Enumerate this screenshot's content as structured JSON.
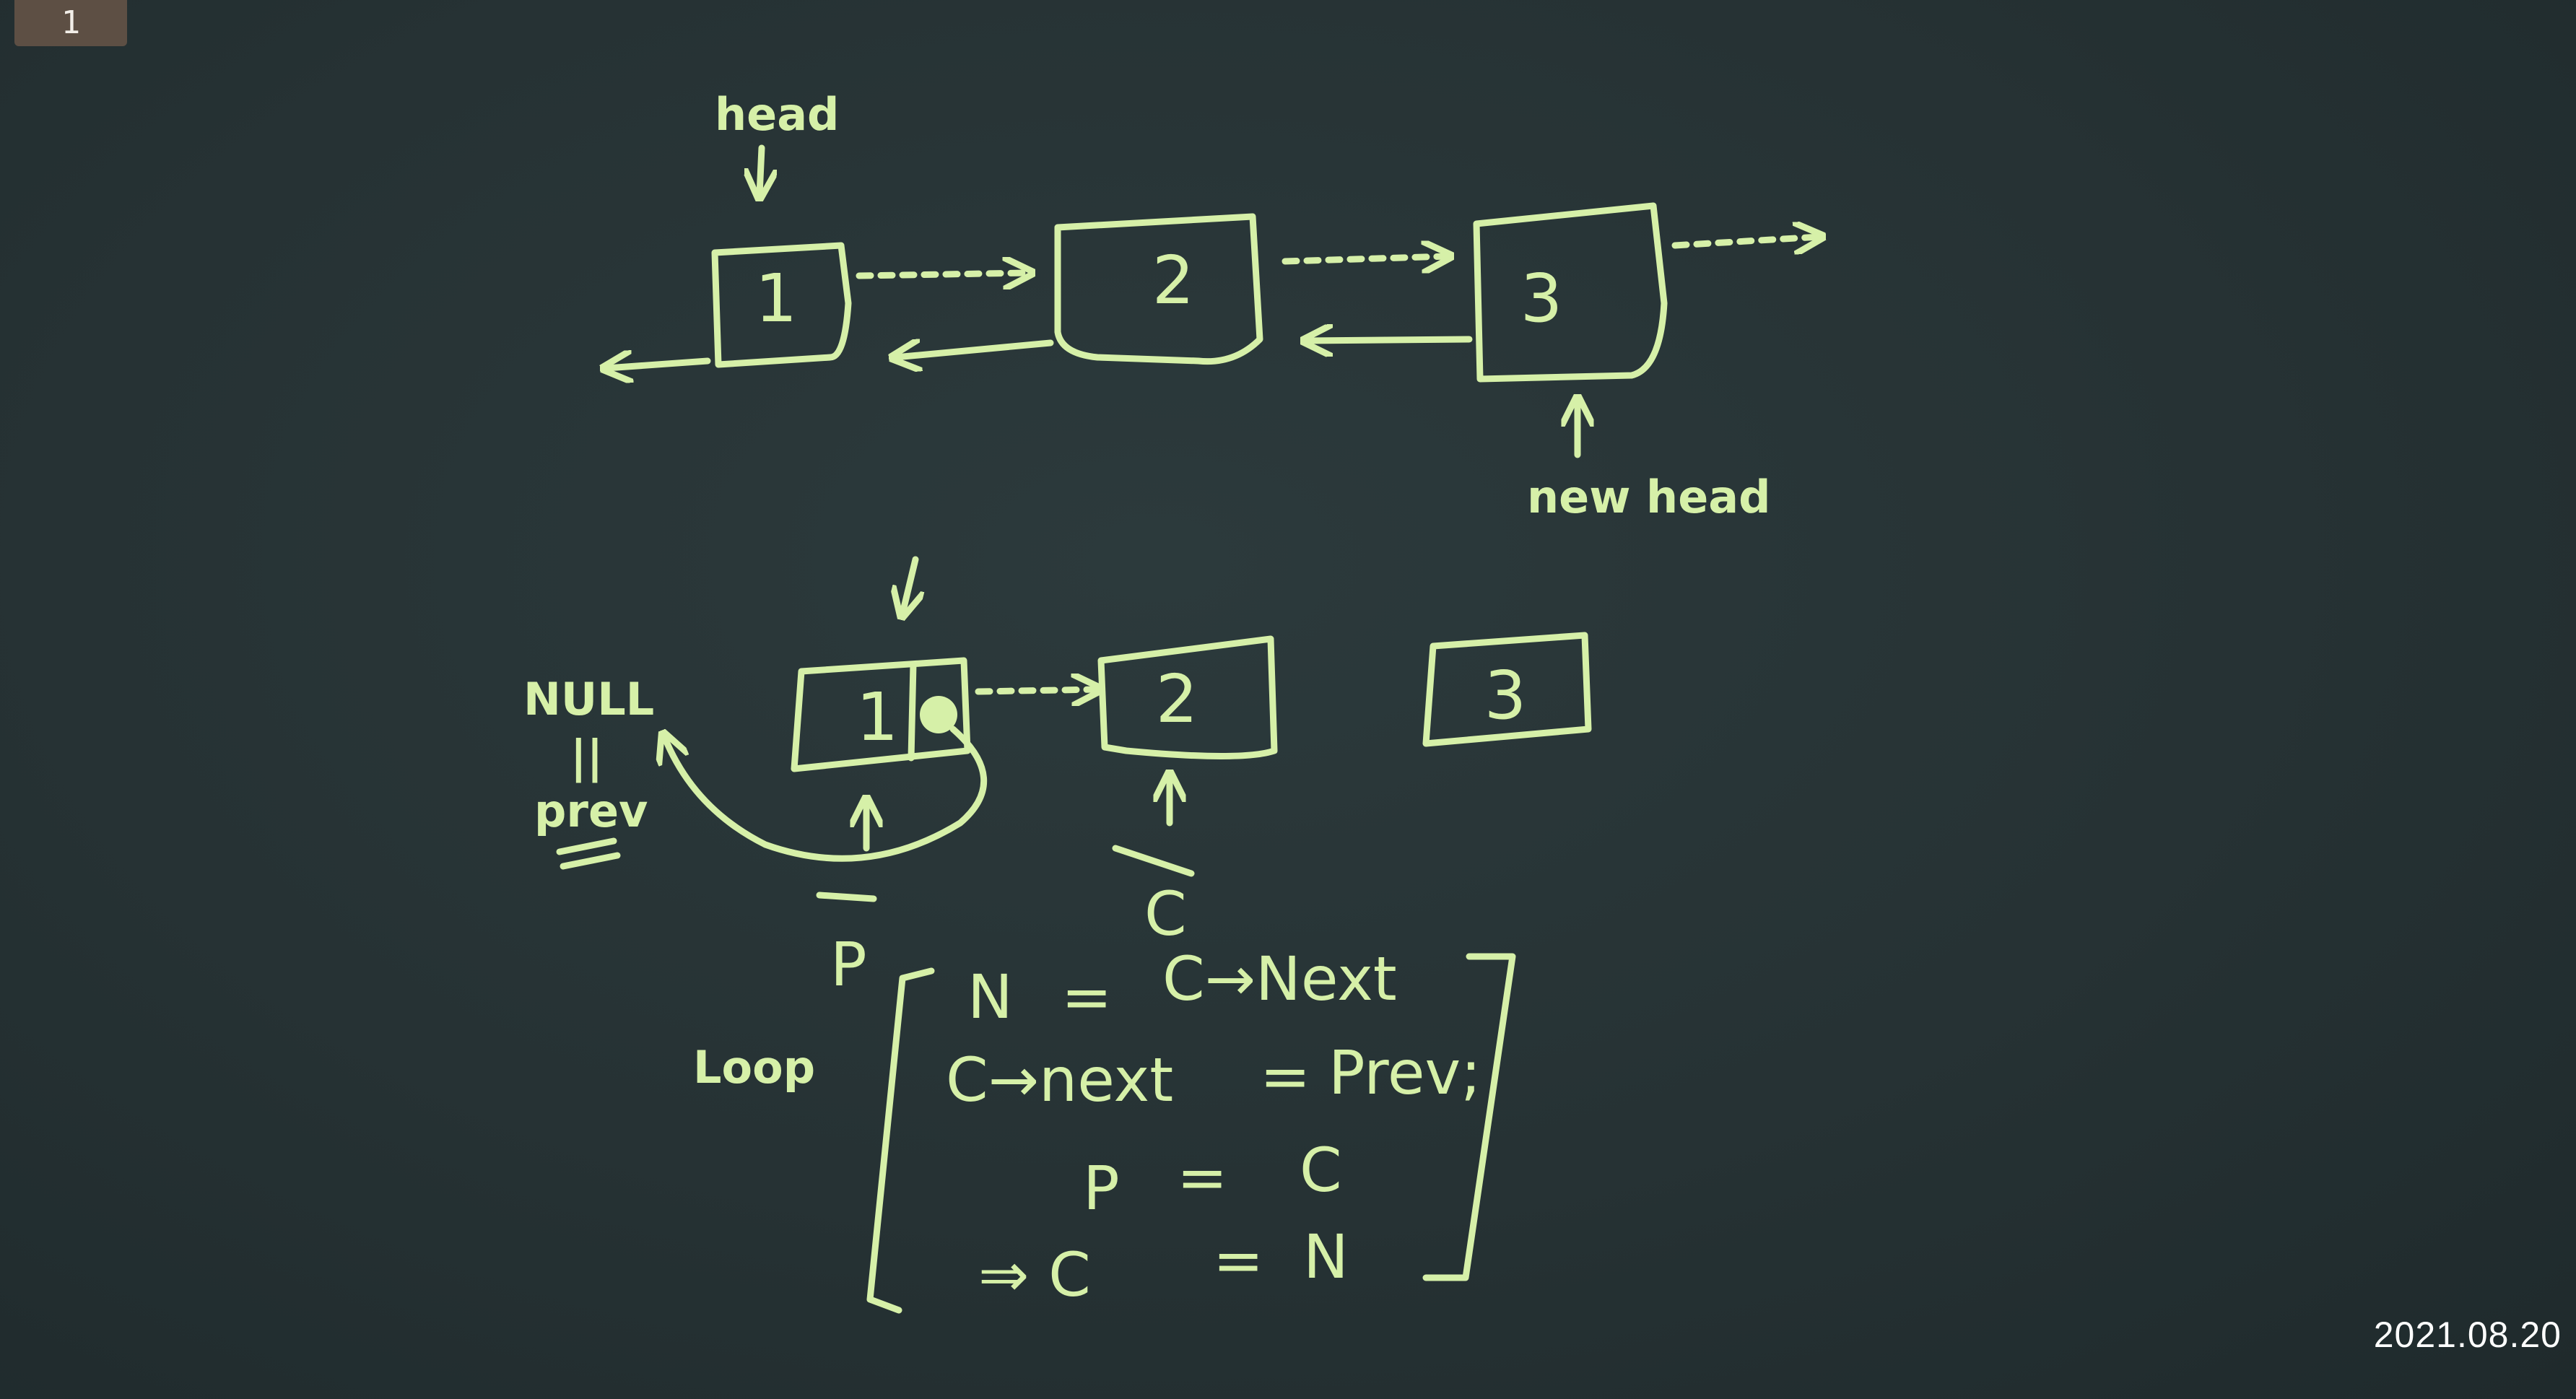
{
  "page_number": "1",
  "date_stamp": "2021.08.20",
  "ink_color": "#d6f0a8",
  "top_diagram": {
    "head_label": "head",
    "new_head_label": "new head",
    "nodes": [
      "1",
      "2",
      "3"
    ]
  },
  "bottom_diagram": {
    "null_label": "NULL",
    "equals_mark": "||",
    "prev_label": "prev",
    "nodes": [
      "1",
      "2",
      "3"
    ],
    "pointer_p": "P",
    "pointer_c": "C"
  },
  "loop": {
    "label": "Loop",
    "lines": [
      {
        "lhs": "N",
        "op": "=",
        "rhs": "C→Next"
      },
      {
        "lhs": "C→next",
        "op": "=",
        "rhs": "Prev;"
      },
      {
        "lhs": "P",
        "op": "=",
        "rhs": "C"
      },
      {
        "lhs": "⇒ C",
        "op": "=",
        "rhs": "N"
      }
    ]
  }
}
